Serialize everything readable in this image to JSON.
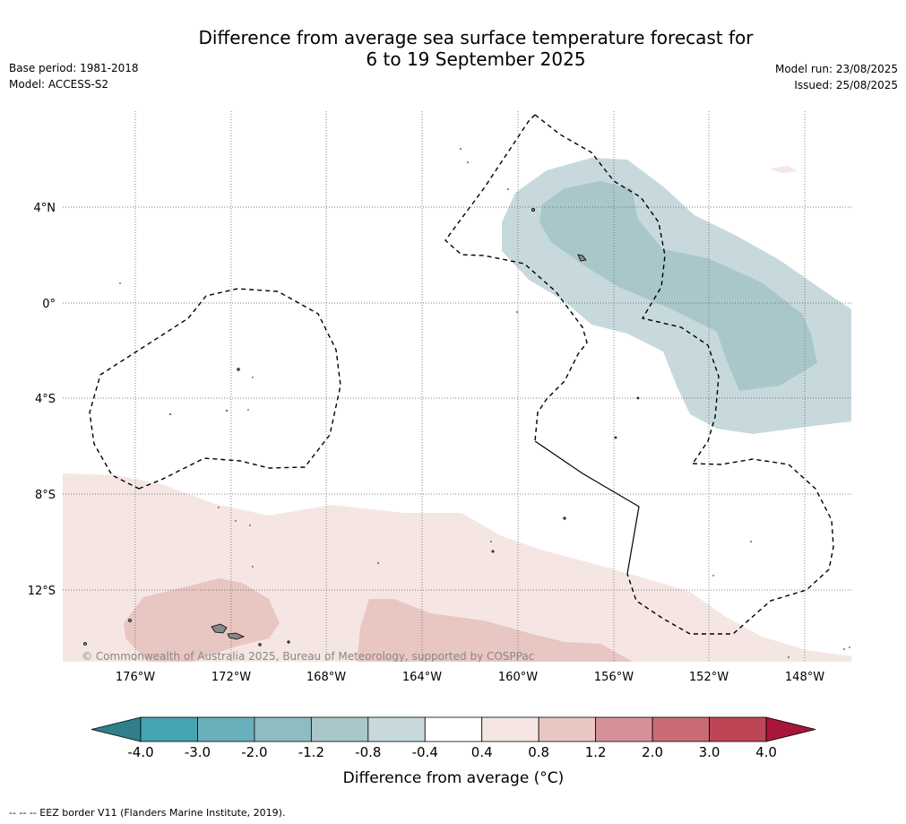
{
  "title_line1": "Difference from average sea surface temperature forecast for",
  "title_line2": "6 to 19 September 2025",
  "meta": {
    "base_period": "Base period: 1981-2018",
    "model": "Model: ACCESS-S2",
    "model_run": "Model run: 23/08/2025",
    "issued": "Issued: 25/08/2025"
  },
  "map": {
    "copyright": "© Commonwealth of Australia 2025, Bureau of Meteorology, supported by COSPPac",
    "lon_labels": [
      "176°W",
      "172°W",
      "168°W",
      "164°W",
      "160°W",
      "156°W",
      "152°W",
      "148°W"
    ],
    "lat_labels": [
      "4°N",
      "0°",
      "4°S",
      "8°S",
      "12°S"
    ]
  },
  "colorbar": {
    "ticks": [
      "-4.0",
      "-3.0",
      "-2.0",
      "-1.2",
      "-0.8",
      "-0.4",
      "0.4",
      "0.8",
      "1.2",
      "2.0",
      "3.0",
      "4.0"
    ],
    "colors": [
      "#45a3b3",
      "#6aafbc",
      "#8fbbc2",
      "#a9c7cb",
      "#c7d9dc",
      "#ffffff",
      "#f5e6e4",
      "#e8c6c1",
      "#d69198",
      "#c96b76",
      "#bd4555"
    ],
    "under_color": "#2f7f8c",
    "over_color": "#a8163a",
    "label": "Difference from average (°C)"
  },
  "footnote": "--  --  -- EEZ border V11 (Flanders Marine Institute, 2019)."
}
